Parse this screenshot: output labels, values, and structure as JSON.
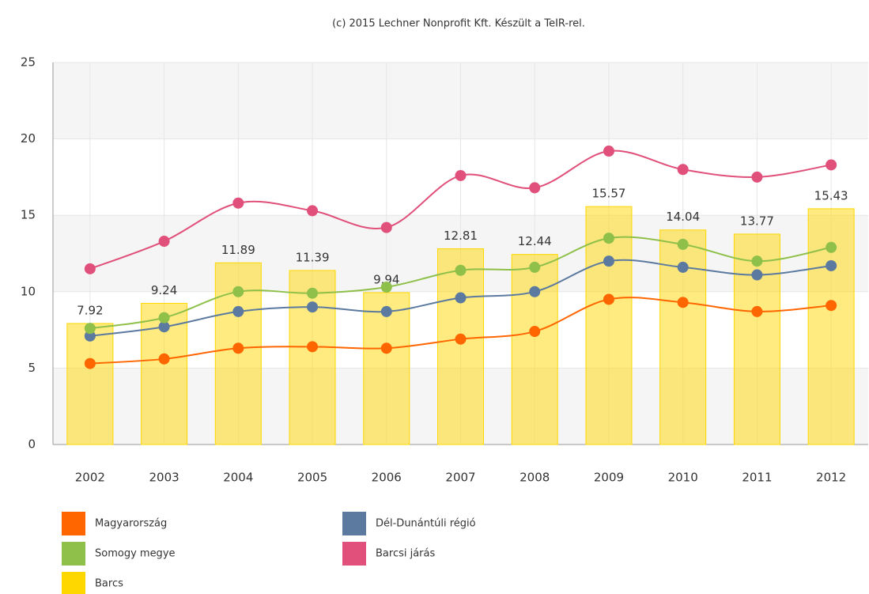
{
  "chart_data": {
    "type": "bar",
    "title": "(c) 2015 Lechner Nonprofit Kft. Készült a TeIR-rel.",
    "categories": [
      "2002",
      "2003",
      "2004",
      "2005",
      "2006",
      "2007",
      "2008",
      "2009",
      "2010",
      "2011",
      "2012"
    ],
    "series": [
      {
        "name": "Magyarország",
        "type": "line",
        "color": "#ff6600",
        "values": [
          5.3,
          5.6,
          6.3,
          6.4,
          6.3,
          6.9,
          7.4,
          9.5,
          9.3,
          8.7,
          9.1
        ]
      },
      {
        "name": "Dél-Dunántúli régió",
        "type": "line",
        "color": "#5c7aa0",
        "values": [
          7.1,
          7.7,
          8.7,
          9.0,
          8.7,
          9.6,
          10.0,
          12.0,
          11.6,
          11.1,
          11.7
        ]
      },
      {
        "name": "Somogy megye",
        "type": "line",
        "color": "#8fc04a",
        "values": [
          7.6,
          8.3,
          10.0,
          9.9,
          10.3,
          11.4,
          11.6,
          13.5,
          13.1,
          12.0,
          12.9
        ]
      },
      {
        "name": "Barcsi járás",
        "type": "line",
        "color": "#e0507a",
        "values": [
          11.5,
          13.3,
          15.8,
          15.3,
          14.2,
          17.6,
          16.8,
          19.2,
          18.0,
          17.5,
          18.3
        ]
      },
      {
        "name": "Barcs",
        "type": "bar",
        "color": "#ffd700",
        "values": [
          7.92,
          9.24,
          11.89,
          11.39,
          9.94,
          12.81,
          12.44,
          15.57,
          14.04,
          13.77,
          15.43
        ]
      }
    ],
    "ylim": [
      0,
      25
    ],
    "yticks": [
      0,
      5,
      10,
      15,
      20,
      25
    ],
    "grid": true
  }
}
